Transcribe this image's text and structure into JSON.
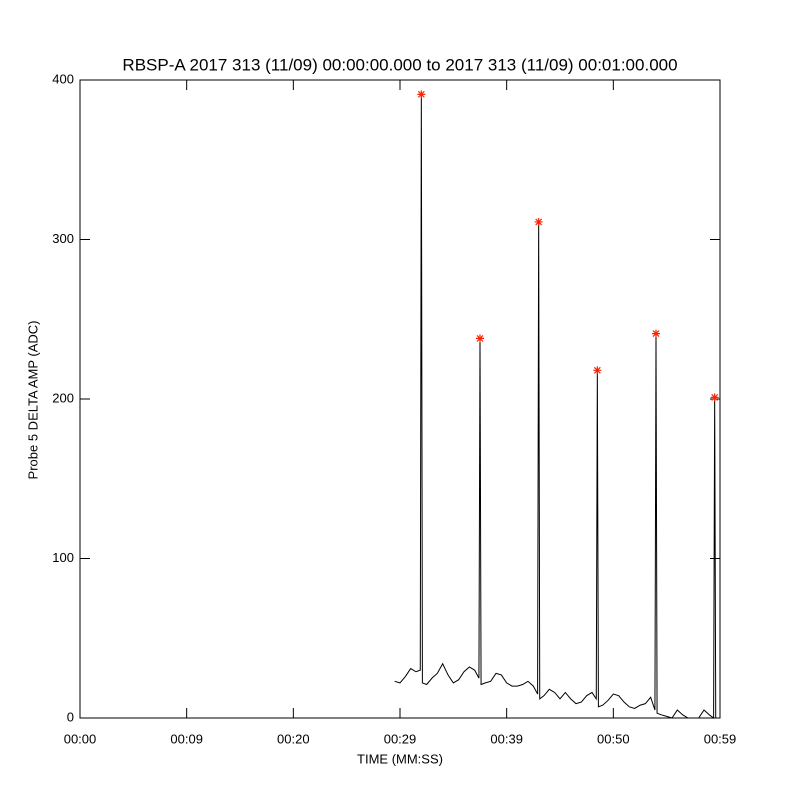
{
  "chart_data": {
    "type": "line",
    "title": "RBSP-A 2017 313 (11/09) 00:00:00.000 to 2017 313 (11/09) 00:01:00.000",
    "xlabel": "TIME (MM:SS)",
    "ylabel": "Probe 5 DELTA AMP (ADC)",
    "xlim": [
      0,
      60
    ],
    "ylim": [
      0,
      400
    ],
    "xticks": [
      {
        "value": 0,
        "label": "00:00"
      },
      {
        "value": 10,
        "label": "00:09"
      },
      {
        "value": 20,
        "label": "00:20"
      },
      {
        "value": 30,
        "label": "00:29"
      },
      {
        "value": 40,
        "label": "00:39"
      },
      {
        "value": 50,
        "label": "00:50"
      },
      {
        "value": 60,
        "label": "00:59"
      }
    ],
    "yticks": [
      0,
      100,
      200,
      300,
      400
    ],
    "x": [
      29.5,
      30,
      30.5,
      31,
      31.5,
      31.9,
      32,
      32.1,
      32.5,
      33,
      33.5,
      34,
      34.5,
      35,
      35.5,
      36,
      36.5,
      37,
      37.4,
      37.5,
      37.6,
      38,
      38.5,
      39,
      39.5,
      40,
      40.5,
      41,
      41.5,
      42,
      42.5,
      42.9,
      43,
      43.1,
      43.5,
      44,
      44.5,
      45,
      45.5,
      46,
      46.5,
      47,
      47.5,
      48,
      48.4,
      48.5,
      48.6,
      49,
      49.5,
      50,
      50.5,
      51,
      51.5,
      52,
      52.5,
      53,
      53.5,
      53.9,
      54,
      54.1,
      54.5,
      55,
      55.5,
      56,
      56.5,
      57,
      57.5,
      58,
      58.5,
      59,
      59.4,
      59.5,
      59.6
    ],
    "series": [
      {
        "color": "#000000",
        "values": [
          23,
          22,
          26,
          31,
          29,
          30,
          391,
          22,
          21,
          25,
          28,
          34,
          27,
          22,
          24,
          29,
          32,
          30,
          25,
          238,
          21,
          22,
          23,
          28,
          27,
          22,
          20,
          20,
          21,
          23,
          20,
          15,
          311,
          12,
          14,
          18,
          16,
          12,
          16,
          12,
          9,
          10,
          14,
          16,
          12,
          218,
          7,
          8,
          11,
          15,
          14,
          10,
          7,
          6,
          8,
          9,
          13,
          5,
          241,
          3,
          2,
          1,
          0,
          5,
          2,
          0,
          0,
          0,
          5,
          2,
          0,
          201,
          0
        ]
      }
    ],
    "peaks": {
      "type": "scatter",
      "color": "#ff2200",
      "x": [
        32,
        37.5,
        43,
        48.5,
        54,
        59.5
      ],
      "values": [
        391,
        238,
        311,
        218,
        241,
        201
      ]
    }
  }
}
